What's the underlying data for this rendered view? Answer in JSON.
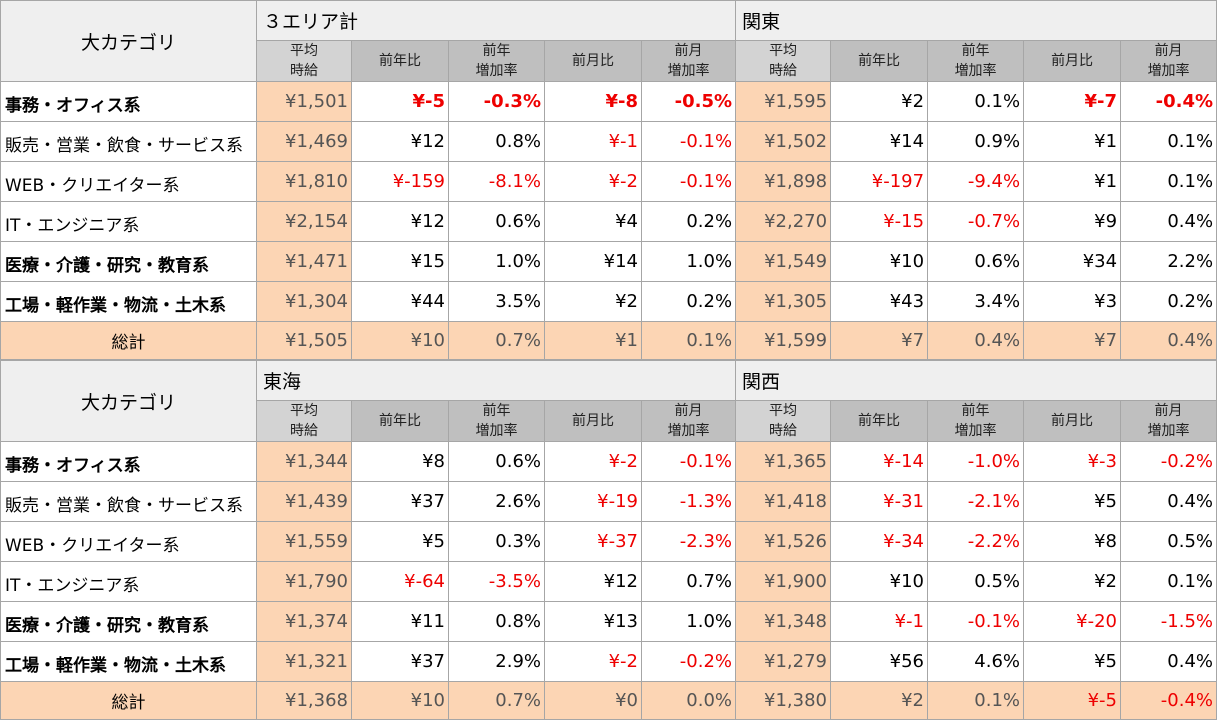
{
  "col_headers": {
    "category": "大カテゴリ",
    "avg": [
      "平均",
      "時給"
    ],
    "yoy": "前年比",
    "yoy_rate": [
      "前年",
      "増加率"
    ],
    "mom": "前月比",
    "mom_rate": [
      "前月",
      "増加率"
    ]
  },
  "blocks": [
    {
      "regions": [
        "３エリア計",
        "関東"
      ],
      "rows": [
        {
          "cat": "事務・オフィス系",
          "bold": true,
          "v": [
            {
              "t": "¥1,501"
            },
            {
              "t": "¥-5",
              "c": "rbold"
            },
            {
              "t": "-0.3%",
              "c": "rbold"
            },
            {
              "t": "¥-8",
              "c": "rbold"
            },
            {
              "t": "-0.5%",
              "c": "rbold"
            },
            {
              "t": "¥1,595"
            },
            {
              "t": "¥2"
            },
            {
              "t": "0.1%"
            },
            {
              "t": "¥-7",
              "c": "rbold"
            },
            {
              "t": "-0.4%",
              "c": "rbold"
            }
          ]
        },
        {
          "cat": "販売・営業・飲食・サービス系",
          "bold": false,
          "v": [
            {
              "t": "¥1,469"
            },
            {
              "t": "¥12"
            },
            {
              "t": "0.8%"
            },
            {
              "t": "¥-1",
              "c": "red"
            },
            {
              "t": "-0.1%",
              "c": "red"
            },
            {
              "t": "¥1,502"
            },
            {
              "t": "¥14"
            },
            {
              "t": "0.9%"
            },
            {
              "t": "¥1"
            },
            {
              "t": "0.1%"
            }
          ]
        },
        {
          "cat": "WEB・クリエイター系",
          "bold": false,
          "v": [
            {
              "t": "¥1,810"
            },
            {
              "t": "¥-159",
              "c": "red"
            },
            {
              "t": "-8.1%",
              "c": "red"
            },
            {
              "t": "¥-2",
              "c": "red"
            },
            {
              "t": "-0.1%",
              "c": "red"
            },
            {
              "t": "¥1,898"
            },
            {
              "t": "¥-197",
              "c": "red"
            },
            {
              "t": "-9.4%",
              "c": "red"
            },
            {
              "t": "¥1"
            },
            {
              "t": "0.1%"
            }
          ]
        },
        {
          "cat": "IT・エンジニア系",
          "bold": false,
          "v": [
            {
              "t": "¥2,154"
            },
            {
              "t": "¥12"
            },
            {
              "t": "0.6%"
            },
            {
              "t": "¥4"
            },
            {
              "t": "0.2%"
            },
            {
              "t": "¥2,270"
            },
            {
              "t": "¥-15",
              "c": "red"
            },
            {
              "t": "-0.7%",
              "c": "red"
            },
            {
              "t": "¥9"
            },
            {
              "t": "0.4%"
            }
          ]
        },
        {
          "cat": "医療・介護・研究・教育系",
          "bold": true,
          "v": [
            {
              "t": "¥1,471"
            },
            {
              "t": "¥15"
            },
            {
              "t": "1.0%"
            },
            {
              "t": "¥14"
            },
            {
              "t": "1.0%"
            },
            {
              "t": "¥1,549"
            },
            {
              "t": "¥10"
            },
            {
              "t": "0.6%"
            },
            {
              "t": "¥34"
            },
            {
              "t": "2.2%"
            }
          ]
        },
        {
          "cat": "工場・軽作業・物流・土木系",
          "bold": true,
          "v": [
            {
              "t": "¥1,304"
            },
            {
              "t": "¥44"
            },
            {
              "t": "3.5%"
            },
            {
              "t": "¥2"
            },
            {
              "t": "0.2%"
            },
            {
              "t": "¥1,305"
            },
            {
              "t": "¥43"
            },
            {
              "t": "3.4%"
            },
            {
              "t": "¥3"
            },
            {
              "t": "0.2%"
            }
          ]
        }
      ],
      "total": {
        "label": "総計",
        "v": [
          {
            "t": "¥1,505"
          },
          {
            "t": "¥10"
          },
          {
            "t": "0.7%"
          },
          {
            "t": "¥1"
          },
          {
            "t": "0.1%"
          },
          {
            "t": "¥1,599"
          },
          {
            "t": "¥7"
          },
          {
            "t": "0.4%"
          },
          {
            "t": "¥7"
          },
          {
            "t": "0.4%"
          }
        ]
      }
    },
    {
      "regions": [
        "東海",
        "関西"
      ],
      "rows": [
        {
          "cat": "事務・オフィス系",
          "bold": true,
          "v": [
            {
              "t": "¥1,344"
            },
            {
              "t": "¥8"
            },
            {
              "t": "0.6%"
            },
            {
              "t": "¥-2",
              "c": "red"
            },
            {
              "t": "-0.1%",
              "c": "red"
            },
            {
              "t": "¥1,365"
            },
            {
              "t": "¥-14",
              "c": "red"
            },
            {
              "t": "-1.0%",
              "c": "red"
            },
            {
              "t": "¥-3",
              "c": "red"
            },
            {
              "t": "-0.2%",
              "c": "red"
            }
          ]
        },
        {
          "cat": "販売・営業・飲食・サービス系",
          "bold": false,
          "v": [
            {
              "t": "¥1,439"
            },
            {
              "t": "¥37"
            },
            {
              "t": "2.6%"
            },
            {
              "t": "¥-19",
              "c": "red"
            },
            {
              "t": "-1.3%",
              "c": "red"
            },
            {
              "t": "¥1,418"
            },
            {
              "t": "¥-31",
              "c": "red"
            },
            {
              "t": "-2.1%",
              "c": "red"
            },
            {
              "t": "¥5"
            },
            {
              "t": "0.4%"
            }
          ]
        },
        {
          "cat": "WEB・クリエイター系",
          "bold": false,
          "v": [
            {
              "t": "¥1,559"
            },
            {
              "t": "¥5"
            },
            {
              "t": "0.3%"
            },
            {
              "t": "¥-37",
              "c": "red"
            },
            {
              "t": "-2.3%",
              "c": "red"
            },
            {
              "t": "¥1,526"
            },
            {
              "t": "¥-34",
              "c": "red"
            },
            {
              "t": "-2.2%",
              "c": "red"
            },
            {
              "t": "¥8"
            },
            {
              "t": "0.5%"
            }
          ]
        },
        {
          "cat": "IT・エンジニア系",
          "bold": false,
          "v": [
            {
              "t": "¥1,790"
            },
            {
              "t": "¥-64",
              "c": "red"
            },
            {
              "t": "-3.5%",
              "c": "red"
            },
            {
              "t": "¥12"
            },
            {
              "t": "0.7%"
            },
            {
              "t": "¥1,900"
            },
            {
              "t": "¥10"
            },
            {
              "t": "0.5%"
            },
            {
              "t": "¥2"
            },
            {
              "t": "0.1%"
            }
          ]
        },
        {
          "cat": "医療・介護・研究・教育系",
          "bold": true,
          "v": [
            {
              "t": "¥1,374"
            },
            {
              "t": "¥11"
            },
            {
              "t": "0.8%"
            },
            {
              "t": "¥13"
            },
            {
              "t": "1.0%"
            },
            {
              "t": "¥1,348"
            },
            {
              "t": "¥-1",
              "c": "red"
            },
            {
              "t": "-0.1%",
              "c": "red"
            },
            {
              "t": "¥-20",
              "c": "red"
            },
            {
              "t": "-1.5%",
              "c": "red"
            }
          ]
        },
        {
          "cat": "工場・軽作業・物流・土木系",
          "bold": true,
          "v": [
            {
              "t": "¥1,321"
            },
            {
              "t": "¥37"
            },
            {
              "t": "2.9%"
            },
            {
              "t": "¥-2",
              "c": "red"
            },
            {
              "t": "-0.2%",
              "c": "red"
            },
            {
              "t": "¥1,279"
            },
            {
              "t": "¥56"
            },
            {
              "t": "4.6%"
            },
            {
              "t": "¥5"
            },
            {
              "t": "0.4%"
            }
          ]
        }
      ],
      "total": {
        "label": "総計",
        "v": [
          {
            "t": "¥1,368"
          },
          {
            "t": "¥10"
          },
          {
            "t": "0.7%"
          },
          {
            "t": "¥0"
          },
          {
            "t": "0.0%"
          },
          {
            "t": "¥1,380"
          },
          {
            "t": "¥2"
          },
          {
            "t": "0.1%"
          },
          {
            "t": "¥-5",
            "c": "red"
          },
          {
            "t": "-0.4%",
            "c": "red"
          }
        ]
      }
    }
  ]
}
